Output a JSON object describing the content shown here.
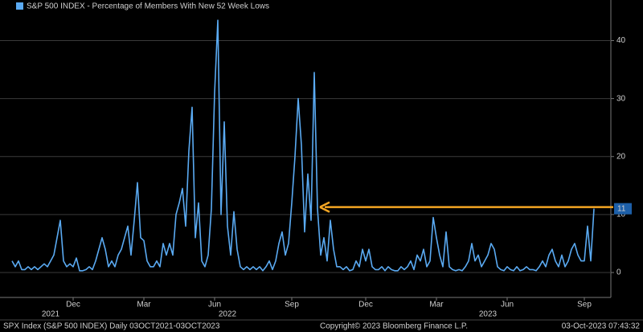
{
  "chart_data": {
    "type": "line",
    "legend": "S&P 500 INDEX - Percentage of Members With New 52 Week Lows",
    "series": [
      {
        "name": "S&P 500 INDEX - Percentage of Members With New 52 Week Lows",
        "color": "#5aaaf2",
        "values": [
          2,
          1,
          2,
          0.5,
          0.5,
          1,
          0.5,
          1,
          0.5,
          1,
          1.5,
          1,
          2,
          3,
          6,
          9,
          2,
          1,
          1.5,
          1,
          2.5,
          0.3,
          0.3,
          0.5,
          1,
          0.5,
          2,
          4,
          6,
          4,
          1,
          2,
          1,
          3,
          4,
          6,
          8,
          3,
          9,
          15.5,
          6,
          5.5,
          2,
          1,
          1,
          2,
          1,
          5,
          3,
          5,
          3,
          10,
          12,
          14.5,
          8,
          21,
          28.5,
          6,
          12,
          2,
          1,
          3,
          11,
          31,
          43.5,
          10,
          26,
          8,
          3,
          10.5,
          4,
          1,
          0.5,
          1,
          0.5,
          1,
          0.5,
          1,
          0.3,
          1,
          2,
          0.5,
          2,
          5,
          7,
          3,
          5,
          12,
          20,
          30,
          22,
          7,
          17,
          9,
          34.5,
          11,
          3,
          6,
          2,
          9,
          4,
          1,
          1,
          0.5,
          1,
          0.3,
          0.5,
          2,
          1,
          4,
          2,
          4,
          1,
          0.5,
          0.5,
          1,
          0.3,
          1,
          0.5,
          0.3,
          0.3,
          1,
          0.5,
          1,
          2,
          0.5,
          3,
          2,
          4,
          1,
          2,
          9.5,
          6,
          3,
          1,
          7,
          1,
          0.5,
          0.3,
          0.5,
          0.3,
          1,
          2,
          5,
          2,
          3,
          1,
          2,
          3,
          5,
          4,
          1,
          0.5,
          0.3,
          1,
          0.5,
          0.3,
          1,
          0.3,
          0.5,
          1,
          0.5,
          0.5,
          0.3,
          1,
          2,
          1,
          3,
          4,
          2,
          1,
          3,
          1,
          2,
          4,
          5,
          3,
          2,
          2,
          8,
          2,
          11
        ]
      }
    ],
    "ylim": [
      -4.3,
      47
    ],
    "yticks": [
      0,
      10,
      20,
      30,
      40
    ],
    "grid": true,
    "xticks": [
      {
        "value": 19,
        "label": "Dec"
      },
      {
        "value": 41,
        "label": "Mar"
      },
      {
        "value": 63,
        "label": "Jun"
      },
      {
        "value": 87,
        "label": "Sep"
      },
      {
        "value": 110,
        "label": "Dec"
      },
      {
        "value": 132,
        "label": "Mar"
      },
      {
        "value": 154,
        "label": "Jun"
      },
      {
        "value": 178,
        "label": "Sep"
      }
    ],
    "year_ticks": [
      {
        "value": 12,
        "label": "2021"
      },
      {
        "value": 67,
        "label": "2022"
      },
      {
        "value": 148,
        "label": "2023"
      }
    ],
    "footer_left": "SPX Index (S&P 500 INDEX)  Daily 03OCT2021-03OCT2023",
    "footer_center": "Copyright© 2023 Bloomberg Finance L.P.",
    "footer_right": "03-Oct-2023 07:43:32"
  }
}
